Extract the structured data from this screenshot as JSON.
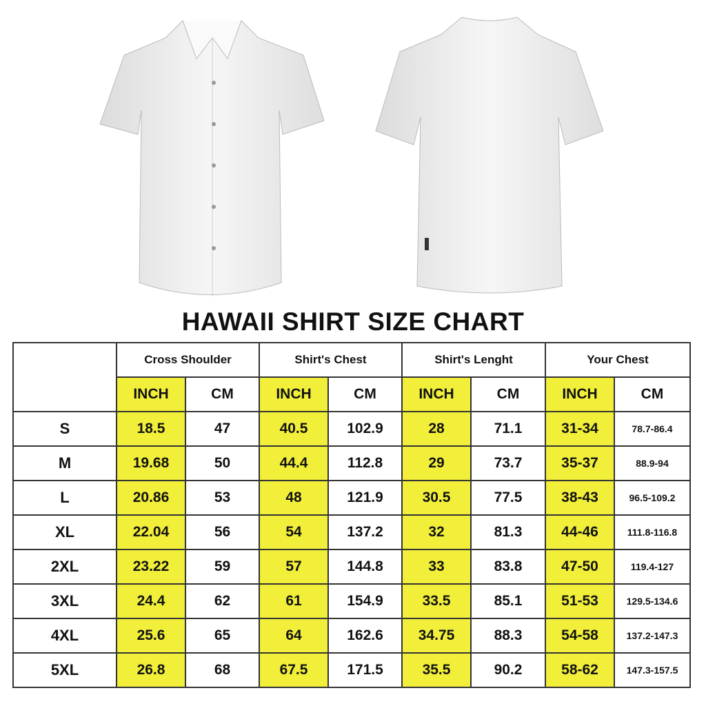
{
  "title": "HAWAII SHIRT SIZE CHART",
  "colors": {
    "highlight": "#f1ef3a",
    "border": "#333333"
  },
  "images": {
    "front": "white short-sleeve button shirt front",
    "back": "white short-sleeve shirt back"
  },
  "table": {
    "groups": [
      "Cross Shoulder",
      "Shirt's Chest",
      "Shirt's Lenght",
      "Your Chest"
    ],
    "units": [
      "INCH",
      "CM",
      "INCH",
      "CM",
      "INCH",
      "CM",
      "INCH",
      "CM"
    ],
    "rows": [
      {
        "size": "S",
        "values": [
          "18.5",
          "47",
          "40.5",
          "102.9",
          "28",
          "71.1",
          "31-34",
          "78.7-86.4"
        ]
      },
      {
        "size": "M",
        "values": [
          "19.68",
          "50",
          "44.4",
          "112.8",
          "29",
          "73.7",
          "35-37",
          "88.9-94"
        ]
      },
      {
        "size": "L",
        "values": [
          "20.86",
          "53",
          "48",
          "121.9",
          "30.5",
          "77.5",
          "38-43",
          "96.5-109.2"
        ]
      },
      {
        "size": "XL",
        "values": [
          "22.04",
          "56",
          "54",
          "137.2",
          "32",
          "81.3",
          "44-46",
          "111.8-116.8"
        ]
      },
      {
        "size": "2XL",
        "values": [
          "23.22",
          "59",
          "57",
          "144.8",
          "33",
          "83.8",
          "47-50",
          "119.4-127"
        ]
      },
      {
        "size": "3XL",
        "values": [
          "24.4",
          "62",
          "61",
          "154.9",
          "33.5",
          "85.1",
          "51-53",
          "129.5-134.6"
        ]
      },
      {
        "size": "4XL",
        "values": [
          "25.6",
          "65",
          "64",
          "162.6",
          "34.75",
          "88.3",
          "54-58",
          "137.2-147.3"
        ]
      },
      {
        "size": "5XL",
        "values": [
          "26.8",
          "68",
          "67.5",
          "171.5",
          "35.5",
          "90.2",
          "58-62",
          "147.3-157.5"
        ]
      }
    ]
  }
}
